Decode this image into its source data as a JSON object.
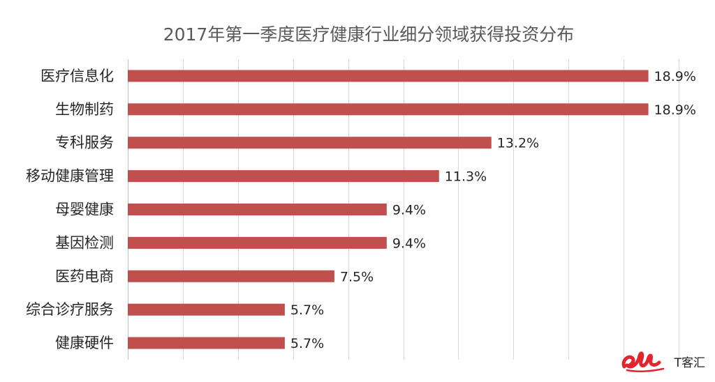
{
  "chart_data": {
    "type": "bar",
    "orientation": "horizontal",
    "title": "2017年第一季度医疗健康行业细分领域获得投资分布",
    "categories": [
      "医疗信息化",
      "生物制药",
      "专科服务",
      "移动健康管理",
      "母婴健康",
      "基因检测",
      "医药电商",
      "综合诊疗服务",
      "健康硬件"
    ],
    "values": [
      18.9,
      18.9,
      13.2,
      11.3,
      9.4,
      9.4,
      7.5,
      5.7,
      5.7
    ],
    "value_labels": [
      "18.9%",
      "18.9%",
      "13.2%",
      "11.3%",
      "9.4%",
      "9.4%",
      "7.5%",
      "5.7%",
      "5.7%"
    ],
    "xlim": [
      0,
      20
    ],
    "grid": "vertical",
    "legend": "none",
    "bar_color": "#c0504d"
  },
  "watermark": {
    "text": "T客汇",
    "logo_color": "#e3262d"
  }
}
